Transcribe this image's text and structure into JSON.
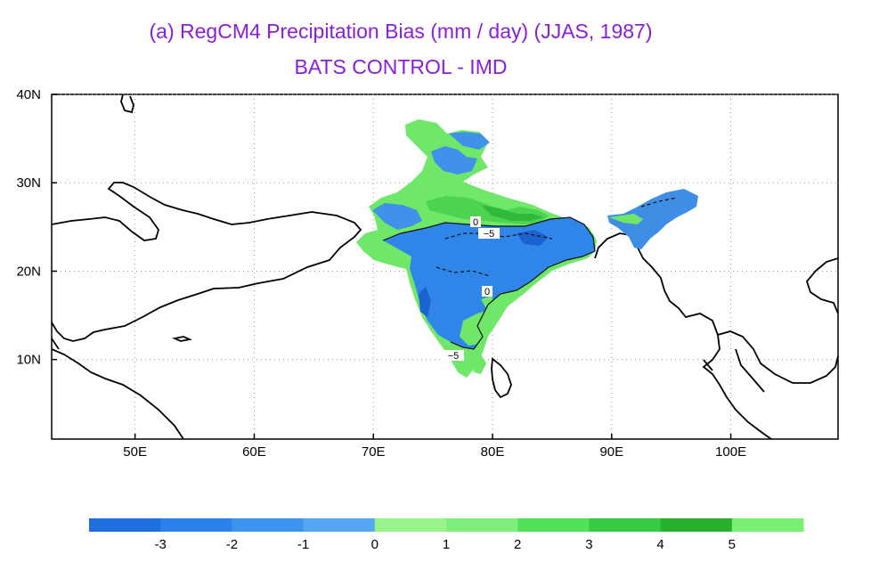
{
  "titles": {
    "line1": "(a) RegCM4 Precipitation Bias (mm / day)  (JJAS, 1987)",
    "line2": "BATS CONTROL - IMD"
  },
  "map": {
    "lon_range": [
      43,
      109
    ],
    "lat_range": [
      1,
      40
    ],
    "lon_ticks": [
      "50E",
      "60E",
      "70E",
      "80E",
      "90E",
      "100E"
    ],
    "lat_ticks": [
      "10N",
      "20N",
      "30N",
      "40N"
    ],
    "contour_labels": [
      "0",
      "−5",
      "0",
      "−5"
    ],
    "grid": true
  },
  "colorbar": {
    "labels": [
      "-3",
      "-2",
      "-1",
      "0",
      "1",
      "2",
      "3",
      "4",
      "5"
    ],
    "colors": [
      "#1f6fe0",
      "#2b82ea",
      "#3d95ef",
      "#55a9f2",
      "#97f58c",
      "#7cf07a",
      "#52e25a",
      "#36cb42",
      "#27b02e",
      "#79ef74"
    ]
  },
  "colors": {
    "title": "#8b1fd6",
    "negative_bias": "#2f86e8",
    "positive_bias": "#6fe86a"
  }
}
